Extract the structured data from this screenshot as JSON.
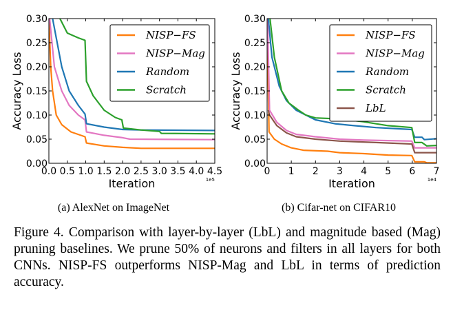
{
  "chart_data": [
    {
      "type": "line",
      "xlabel": "Iteration",
      "ylabel": "Accuracy Loss",
      "x_multiplier_label": "1e5",
      "xlim": [
        0,
        4.5
      ],
      "ylim": [
        0,
        0.3
      ],
      "xticks": [
        "0.0",
        "0.5",
        "1.0",
        "1.5",
        "2.0",
        "2.5",
        "3.0",
        "3.5",
        "4.0",
        "4.5"
      ],
      "yticks": [
        "0.00",
        "0.05",
        "0.10",
        "0.15",
        "0.20",
        "0.25",
        "0.30"
      ],
      "legend_position": "top-right",
      "grid": false,
      "series": [
        {
          "name": "NISP−FS",
          "color": "#ff7f0e",
          "x": [
            0,
            0.05,
            0.1,
            0.2,
            0.35,
            0.6,
            0.98,
            1.02,
            1.5,
            2.0,
            2.5,
            4.5
          ],
          "y": [
            0.3,
            0.2,
            0.15,
            0.1,
            0.08,
            0.065,
            0.055,
            0.042,
            0.036,
            0.033,
            0.031,
            0.031
          ]
        },
        {
          "name": "NISP−Mag",
          "color": "#e377c2",
          "x": [
            0.02,
            0.15,
            0.35,
            0.55,
            0.8,
            0.98,
            1.02,
            1.5,
            2.0,
            2.2,
            4.5
          ],
          "y": [
            0.3,
            0.2,
            0.15,
            0.12,
            0.1,
            0.09,
            0.065,
            0.058,
            0.053,
            0.05,
            0.049
          ]
        },
        {
          "name": "Random",
          "color": "#1f77b4",
          "x": [
            0.1,
            0.35,
            0.55,
            0.8,
            0.98,
            1.02,
            1.5,
            2.0,
            2.5,
            4.5
          ],
          "y": [
            0.3,
            0.2,
            0.15,
            0.12,
            0.102,
            0.082,
            0.075,
            0.07,
            0.069,
            0.068
          ]
        },
        {
          "name": "Scratch",
          "color": "#2ca02c",
          "x": [
            0.3,
            0.5,
            0.8,
            0.98,
            1.02,
            1.2,
            1.5,
            1.8,
            1.98,
            2.02,
            2.5,
            3.0,
            3.05,
            4.5
          ],
          "y": [
            0.3,
            0.27,
            0.26,
            0.255,
            0.17,
            0.14,
            0.11,
            0.095,
            0.09,
            0.073,
            0.069,
            0.066,
            0.062,
            0.061
          ]
        }
      ]
    },
    {
      "type": "line",
      "xlabel": "Iteration",
      "ylabel": "Accuracy Loss",
      "x_multiplier_label": "1e4",
      "xlim": [
        0,
        7
      ],
      "ylim": [
        0,
        0.3
      ],
      "xticks": [
        "0",
        "1",
        "2",
        "3",
        "4",
        "5",
        "6",
        "7"
      ],
      "yticks": [
        "0.00",
        "0.05",
        "0.10",
        "0.15",
        "0.20",
        "0.25",
        "0.30"
      ],
      "legend_position": "top-right",
      "grid": false,
      "series": [
        {
          "name": "NISP−FS",
          "color": "#ff7f0e",
          "x": [
            0,
            0.08,
            0.3,
            0.6,
            1.0,
            1.5,
            2.5,
            3,
            4,
            5,
            5.98,
            6.1,
            6.5,
            6.6,
            7
          ],
          "y": [
            0.3,
            0.065,
            0.05,
            0.04,
            0.032,
            0.027,
            0.025,
            0.022,
            0.02,
            0.017,
            0.016,
            0.003,
            0.003,
            0.001,
            0.001
          ]
        },
        {
          "name": "NISP−Mag",
          "color": "#e377c2",
          "x": [
            0.02,
            0.1,
            0.4,
            0.8,
            1.2,
            2,
            3,
            4,
            5.98,
            6.1,
            7
          ],
          "y": [
            0.3,
            0.11,
            0.085,
            0.068,
            0.06,
            0.055,
            0.05,
            0.048,
            0.046,
            0.032,
            0.032
          ]
        },
        {
          "name": "Random",
          "color": "#1f77b4",
          "x": [
            0.05,
            0.2,
            0.5,
            0.8,
            1.2,
            2,
            2.8,
            3.6,
            4.5,
            5.98,
            6.1,
            6.4,
            6.5,
            7
          ],
          "y": [
            0.3,
            0.22,
            0.16,
            0.13,
            0.11,
            0.09,
            0.082,
            0.078,
            0.074,
            0.07,
            0.054,
            0.054,
            0.049,
            0.051
          ]
        },
        {
          "name": "Scratch",
          "color": "#2ca02c",
          "x": [
            0.12,
            0.3,
            0.6,
            0.9,
            1.3,
            1.6,
            2,
            3,
            4,
            5,
            5.98,
            6.1,
            6.4,
            6.6,
            7
          ],
          "y": [
            0.3,
            0.22,
            0.15,
            0.125,
            0.11,
            0.1,
            0.094,
            0.092,
            0.086,
            0.078,
            0.074,
            0.043,
            0.043,
            0.036,
            0.037
          ]
        },
        {
          "name": "LbL",
          "color": "#8c564b",
          "x": [
            0.05,
            0.1,
            0.4,
            0.8,
            1.2,
            2,
            3,
            4.5,
            5.98,
            6.1,
            7
          ],
          "y": [
            0.11,
            0.1,
            0.078,
            0.063,
            0.055,
            0.05,
            0.046,
            0.043,
            0.04,
            0.022,
            0.022
          ]
        }
      ]
    }
  ],
  "subcaptions": [
    "(a)  AlexNet on ImageNet",
    "(b)  Cifar-net on CIFAR10"
  ],
  "caption": "Figure 4. Comparison with layer-by-layer (LbL) and magnitude based (Mag) pruning baselines. We prune 50% of neurons and filters in all layers for both CNNs. NISP-FS outperforms NISP-Mag and LbL in terms of prediction accuracy."
}
